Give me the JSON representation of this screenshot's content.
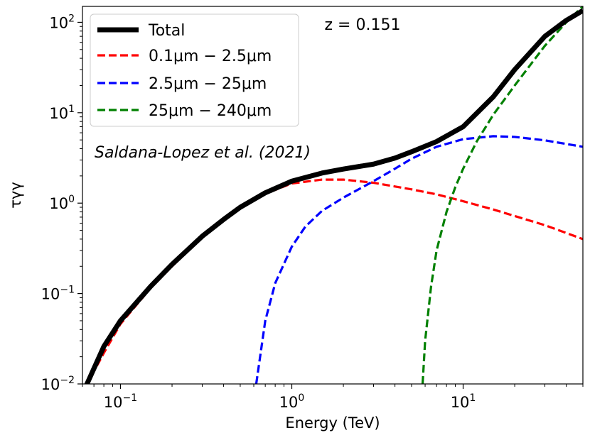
{
  "chart_data": {
    "type": "line",
    "xlabel": "Energy (TeV)",
    "ylabel": "τγγ",
    "xscale": "log",
    "yscale": "log",
    "xlim": [
      0.06,
      50
    ],
    "ylim": [
      0.01,
      150
    ],
    "x_ticks": [
      {
        "value": 0.1,
        "base": "10",
        "exp": "−1"
      },
      {
        "value": 1,
        "base": "10",
        "exp": "0"
      },
      {
        "value": 10,
        "base": "10",
        "exp": "1"
      }
    ],
    "y_ticks": [
      {
        "value": 0.01,
        "base": "10",
        "exp": "−2"
      },
      {
        "value": 0.1,
        "base": "10",
        "exp": "−1"
      },
      {
        "value": 1,
        "base": "10",
        "exp": "0"
      },
      {
        "value": 10,
        "base": "10",
        "exp": "1"
      },
      {
        "value": 100,
        "base": "10",
        "exp": "2"
      }
    ],
    "annotations": {
      "redshift": "z = 0.151",
      "reference": "Saldana-Lopez et al. (2021)"
    },
    "legend_position": "top-left",
    "grid": false,
    "series": [
      {
        "name": "Total",
        "color": "#000000",
        "style": "solid",
        "x": [
          0.063,
          0.08,
          0.1,
          0.15,
          0.2,
          0.3,
          0.4,
          0.5,
          0.7,
          1.0,
          1.5,
          2.0,
          3.0,
          4.0,
          5.0,
          7.0,
          10.0,
          15.0,
          20.0,
          30.0,
          40.0,
          50.0
        ],
        "y": [
          0.0095,
          0.026,
          0.05,
          0.12,
          0.21,
          0.43,
          0.66,
          0.9,
          1.3,
          1.75,
          2.15,
          2.38,
          2.7,
          3.15,
          3.7,
          4.8,
          7.0,
          15,
          30,
          70,
          105,
          135
        ]
      },
      {
        "name": "0.1μm − 2.5μm",
        "color": "#ff0000",
        "style": "dashed",
        "x": [
          0.063,
          0.08,
          0.1,
          0.15,
          0.2,
          0.3,
          0.4,
          0.5,
          0.7,
          1.0,
          1.5,
          2.0,
          3.0,
          5.0,
          7.0,
          10.0,
          15.0,
          20.0,
          30.0,
          50.0
        ],
        "y": [
          0.0095,
          0.022,
          0.046,
          0.115,
          0.2,
          0.42,
          0.65,
          0.88,
          1.27,
          1.65,
          1.82,
          1.82,
          1.68,
          1.42,
          1.25,
          1.05,
          0.85,
          0.72,
          0.57,
          0.4
        ]
      },
      {
        "name": "2.5μm − 25μm",
        "color": "#0000ff",
        "style": "dashed",
        "x": [
          0.62,
          0.7,
          0.8,
          1.0,
          1.2,
          1.5,
          2.0,
          3.0,
          4.0,
          5.0,
          7.0,
          10.0,
          15.0,
          20.0,
          30.0,
          50.0
        ],
        "y": [
          0.01,
          0.05,
          0.13,
          0.33,
          0.55,
          0.82,
          1.15,
          1.75,
          2.4,
          3.1,
          4.2,
          5.1,
          5.5,
          5.4,
          4.95,
          4.2
        ]
      },
      {
        "name": "25μm − 240μm",
        "color": "#008000",
        "style": "dashed",
        "x": [
          5.8,
          6.0,
          6.5,
          7.0,
          8.0,
          9.0,
          10.0,
          12.0,
          15.0,
          20.0,
          30.0,
          40.0,
          50.0
        ],
        "y": [
          0.01,
          0.03,
          0.12,
          0.3,
          0.8,
          1.5,
          2.4,
          4.8,
          9.5,
          20,
          55,
          100,
          150
        ]
      }
    ]
  }
}
